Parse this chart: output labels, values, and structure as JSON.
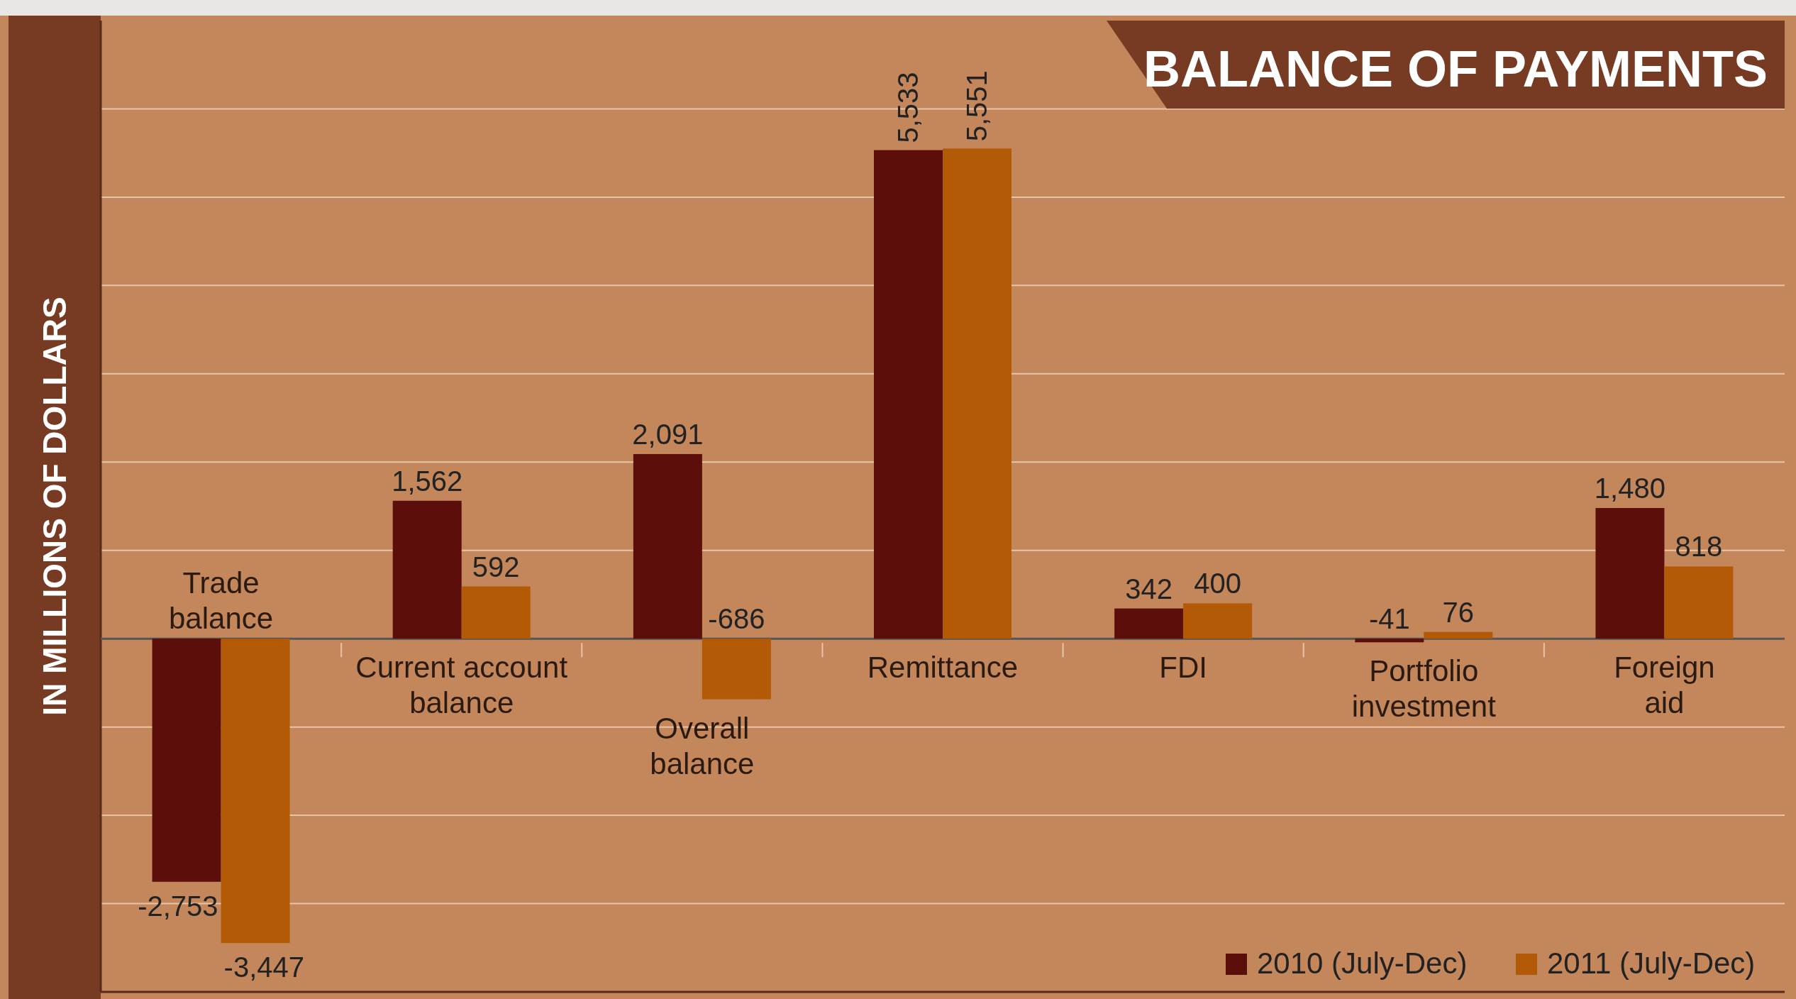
{
  "chart_data": {
    "type": "bar",
    "title": "BALANCE OF PAYMENTS",
    "ylabel": "IN MILLIONS OF DOLLARS",
    "categories": [
      "Trade balance",
      "Current account balance",
      "Overall balance",
      "Remittance",
      "FDI",
      "Portfolio investment",
      "Foreign aid"
    ],
    "series": [
      {
        "name": "2010 (July-Dec)",
        "color": "#5c0f0a",
        "values": [
          -2753,
          1562,
          2091,
          5533,
          342,
          -41,
          1480
        ],
        "value_labels": [
          "-2,753",
          "1,562",
          "2,091",
          "5,533",
          "342",
          "-41",
          "1,480"
        ]
      },
      {
        "name": "2011 (July-Dec)",
        "color": "#b35a06",
        "values": [
          -3447,
          592,
          -686,
          5551,
          400,
          76,
          818
        ],
        "value_labels": [
          "-3,447",
          "592",
          "-686",
          "5,551",
          "400",
          "76",
          "818"
        ]
      }
    ],
    "ylim": [
      -4000,
      7000
    ],
    "yticks": [
      {
        "value": -3000,
        "label": null
      },
      {
        "value": -2000,
        "label": null
      },
      {
        "value": -1000,
        "label": null
      },
      {
        "value": 1000,
        "label": null
      },
      {
        "value": 2000,
        "label": null
      },
      {
        "value": 3000,
        "label": null
      },
      {
        "value": 4000,
        "label": null
      },
      {
        "value": 5000,
        "label": null
      },
      {
        "value": 6000,
        "label": null
      }
    ],
    "grid": true,
    "legend": "bottom right"
  }
}
